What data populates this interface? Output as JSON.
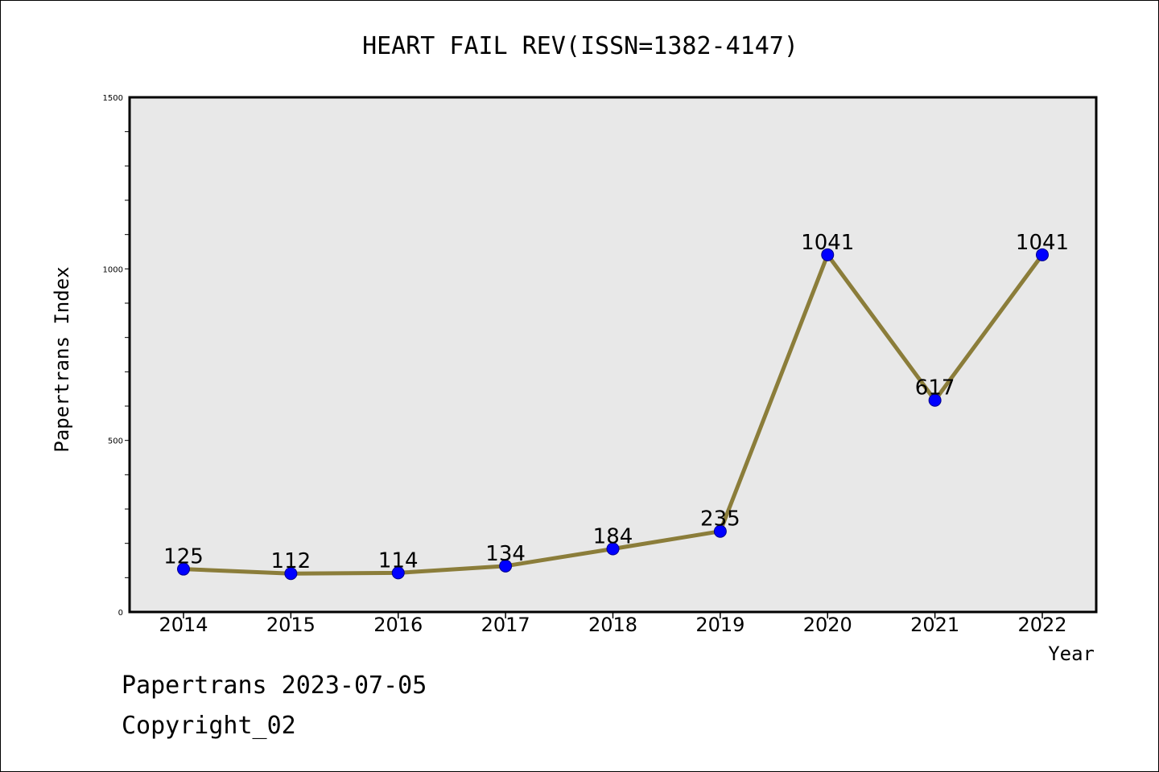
{
  "chart_data": {
    "type": "line",
    "title": "HEART FAIL REV(ISSN=1382-4147)",
    "xlabel": "Year",
    "ylabel": "Papertrans Index",
    "categories": [
      "2014",
      "2015",
      "2016",
      "2017",
      "2018",
      "2019",
      "2020",
      "2021",
      "2022"
    ],
    "values": [
      125,
      112,
      114,
      134,
      184,
      235,
      1041,
      617,
      1041
    ],
    "data_labels": [
      "125",
      "112",
      "114",
      "134",
      "184",
      "235",
      "1041",
      "617",
      "1041"
    ],
    "ylim": [
      0,
      1500
    ],
    "y_ticks": [
      "0",
      "500",
      "1000",
      "1500"
    ],
    "grid": false,
    "colors": {
      "line": "#8b7d3a",
      "marker": "#0000ff",
      "plot_background": "#e8e8e8"
    }
  },
  "footer": {
    "date_line": "Papertrans 2023-07-05",
    "copyright": "Copyright_02"
  }
}
